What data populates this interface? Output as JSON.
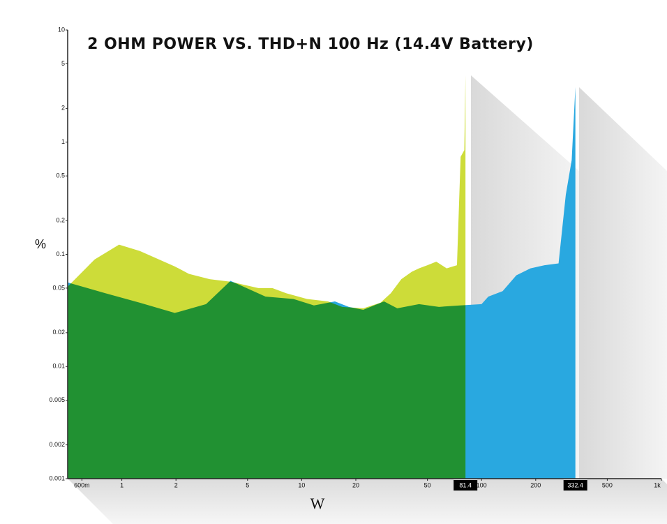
{
  "chart_data": {
    "type": "area",
    "title": "2 OHM POWER VS. THD+N 100 Hz (14.4V Battery)",
    "xlabel": "W",
    "ylabel": "%",
    "xscale": "log",
    "yscale": "log",
    "xlim": [
      0.5,
      1000
    ],
    "ylim": [
      0.001,
      10
    ],
    "xticks": [
      {
        "value": 0.6,
        "label": "600m"
      },
      1,
      2,
      5,
      10,
      20,
      50,
      100,
      200,
      500,
      {
        "value": 1000,
        "label": "1k"
      }
    ],
    "highlight_ticks": [
      81.4,
      332.4
    ],
    "yticks": [
      0.001,
      0.002,
      0.005,
      0.01,
      0.02,
      0.05,
      0.1,
      0.2,
      0.5,
      1,
      2,
      5,
      10
    ],
    "overlap_blend": "multiply",
    "series": [
      {
        "color": "#29a8e0",
        "x": [
          0.503,
          0.81,
          1.26,
          1.97,
          2.94,
          4.02,
          6.3,
          9.0,
          11.7,
          15.3,
          18.3,
          22,
          28.7,
          34,
          44.9,
          58,
          76,
          100,
          109,
          131,
          156,
          187,
          224,
          268,
          294,
          317,
          332.4
        ],
        "values": [
          0.056,
          0.045,
          0.037,
          0.03,
          0.036,
          0.058,
          0.042,
          0.04,
          0.035,
          0.038,
          0.034,
          0.032,
          0.038,
          0.033,
          0.036,
          0.034,
          0.035,
          0.036,
          0.042,
          0.047,
          0.065,
          0.075,
          0.08,
          0.083,
          0.34,
          0.69,
          3.1
        ]
      },
      {
        "color": "#cddc39",
        "x": [
          0.503,
          0.706,
          0.965,
          1.26,
          1.97,
          2.36,
          3.08,
          4.02,
          5.74,
          6.87,
          8.2,
          10.7,
          14.0,
          16.8,
          22,
          27.4,
          31.3,
          35.8,
          41,
          44.9,
          50,
          56,
          64,
          73,
          76.5,
          80.2,
          81.4
        ],
        "values": [
          0.052,
          0.09,
          0.122,
          0.107,
          0.078,
          0.067,
          0.06,
          0.057,
          0.05,
          0.05,
          0.045,
          0.04,
          0.038,
          0.034,
          0.033,
          0.037,
          0.045,
          0.06,
          0.07,
          0.075,
          0.08,
          0.086,
          0.075,
          0.08,
          0.74,
          0.85,
          3.95
        ]
      }
    ]
  }
}
